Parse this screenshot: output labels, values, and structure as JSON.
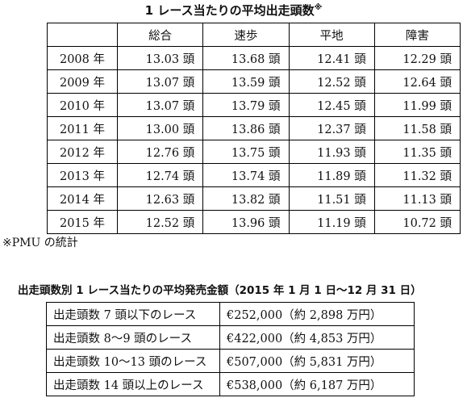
{
  "table1": {
    "title": "1 レース当たりの平均出走頭数",
    "title_mark": "※",
    "headers": [
      "",
      "総合",
      "速歩",
      "平地",
      "障害"
    ],
    "rows": [
      {
        "year": "2008 年",
        "values": [
          "13.03 頭",
          "13.68 頭",
          "12.41 頭",
          "12.29 頭"
        ]
      },
      {
        "year": "2009 年",
        "values": [
          "13.07 頭",
          "13.59 頭",
          "12.52 頭",
          "12.64 頭"
        ]
      },
      {
        "year": "2010 年",
        "values": [
          "13.07 頭",
          "13.79 頭",
          "12.45 頭",
          "11.99 頭"
        ]
      },
      {
        "year": "2011 年",
        "values": [
          "13.00 頭",
          "13.86 頭",
          "12.37 頭",
          "11.58 頭"
        ]
      },
      {
        "year": "2012 年",
        "values": [
          "12.76 頭",
          "13.75 頭",
          "11.93 頭",
          "11.35 頭"
        ]
      },
      {
        "year": "2013 年",
        "values": [
          "12.74 頭",
          "13.74 頭",
          "11.89 頭",
          "11.32 頭"
        ]
      },
      {
        "year": "2014 年",
        "values": [
          "12.63 頭",
          "13.82 頭",
          "11.51 頭",
          "11.13 頭"
        ]
      },
      {
        "year": "2015 年",
        "values": [
          "12.52 頭",
          "13.96 頭",
          "11.19 頭",
          "10.72 頭"
        ]
      }
    ],
    "note": "※PMU の統計"
  },
  "table2": {
    "title": "出走頭数別 1 レース当たりの平均発売金額（2015 年 1 月 1 日〜12 月 31 日）",
    "rows": [
      {
        "label": "出走頭数 7 頭以下のレース",
        "value": "€252,000（約 2,898 万円）"
      },
      {
        "label": "出走頭数 8〜9 頭のレース",
        "value": "€422,000（約 4,853 万円）"
      },
      {
        "label": "出走頭数 10〜13 頭のレース",
        "value": "€507,000（約 5,831 万円）"
      },
      {
        "label": "出走頭数 14 頭以上のレース",
        "value": "€538,000（約 6,187 万円）"
      }
    ]
  }
}
